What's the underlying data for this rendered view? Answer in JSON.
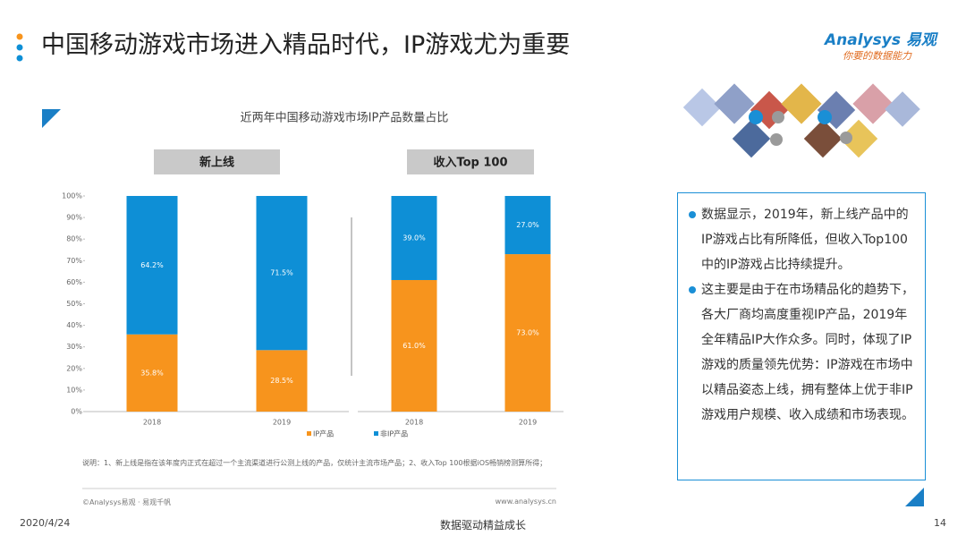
{
  "header": {
    "title": "中国移动游戏市场进入精品时代，IP游戏尤为重要",
    "logo": "Analysys 易观",
    "slogan": "你要的数据能力"
  },
  "figure_title": "近两年中国移动游戏市场IP产品数量占比",
  "chart_data": [
    {
      "type": "stacked_bar",
      "title": "新上线",
      "categories": [
        "2018",
        "2019"
      ],
      "series": [
        {
          "name": "IP产品",
          "color": "#f7941d",
          "values": [
            35.8,
            28.5
          ],
          "value_labels": [
            "35.8%",
            "28.5%"
          ]
        },
        {
          "name": "非IP产品",
          "color": "#0e8fd6",
          "values": [
            64.2,
            71.5
          ],
          "value_labels": [
            "64.2%",
            "71.5%"
          ]
        }
      ],
      "ylim": [
        0,
        100
      ],
      "yticks": [
        {
          "value": 0,
          "label": "0%"
        },
        {
          "value": 10,
          "label": "10%"
        },
        {
          "value": 20,
          "label": "20%"
        },
        {
          "value": 30,
          "label": "30%"
        },
        {
          "value": 40,
          "label": "40%"
        },
        {
          "value": 50,
          "label": "50%"
        },
        {
          "value": 60,
          "label": "60%"
        },
        {
          "value": 70,
          "label": "70%"
        },
        {
          "value": 80,
          "label": "80%"
        },
        {
          "value": 90,
          "label": "90%"
        },
        {
          "value": 100,
          "label": "100%"
        }
      ]
    },
    {
      "type": "stacked_bar",
      "title": "收入Top 100",
      "categories": [
        "2018",
        "2019"
      ],
      "series": [
        {
          "color": "#f7941d",
          "values": [
            61.0,
            73.0
          ],
          "value_labels": [
            "61.0%",
            "73.0%"
          ]
        },
        {
          "color": "#0e8fd6",
          "values": [
            39.0,
            27.0
          ],
          "value_labels": [
            "39.0%",
            "27.0%"
          ]
        }
      ],
      "ylim": [
        0,
        100
      ]
    }
  ],
  "note": "说明：1、新上线是指在该年度内正式在超过一个主流渠道进行公测上线的产品，仅统计主流市场产品；2、收入Top 100根据iOS畅销榜测算所得；",
  "copyright": "©Analysys易观 · 易观千帆",
  "website": "www.analysys.cn",
  "insights": [
    "数据显示，2019年，新上线产品中的IP游戏占比有所降低，但收入Top100中的IP游戏占比持续提升。",
    "这主要是由于在市场精品化的趋势下，各大厂商均高度重视IP产品，2019年全年精品IP大作众多。同时，体现了IP游戏的质量领先优势：IP游戏在市场中以精品姿态上线，拥有整体上优于非IP游戏用户规模、收入成绩和市场表现。"
  ],
  "footer": {
    "date": "2020/4/24",
    "center": "数据驱动精益成长",
    "page": "14"
  }
}
